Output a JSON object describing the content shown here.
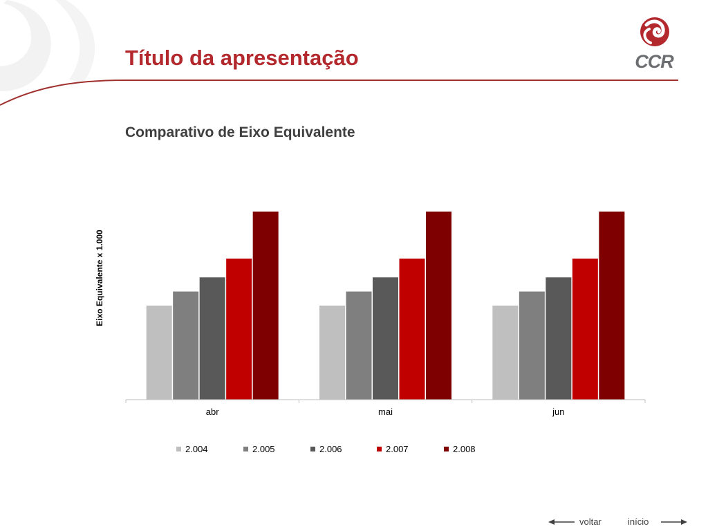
{
  "header": {
    "title": "Título da apresentação"
  },
  "logo": {
    "text": "CCR",
    "color": "#b3282d"
  },
  "chart_data": {
    "type": "bar",
    "title": "Comparativo de Eixo Equivalente",
    "ylabel": "Eixo Equivalente x 1.000",
    "xlabel": "",
    "categories": [
      "abr",
      "mai",
      "jun"
    ],
    "ylim": [
      0,
      1
    ],
    "y_ticks_visible": false,
    "grid": false,
    "legend_position": "bottom",
    "series": [
      {
        "name": "2.004",
        "color": "#bfbfbf",
        "values": [
          0.5,
          0.5,
          0.5
        ]
      },
      {
        "name": "2.005",
        "color": "#7f7f7f",
        "values": [
          0.575,
          0.575,
          0.575
        ]
      },
      {
        "name": "2.006",
        "color": "#595959",
        "values": [
          0.65,
          0.65,
          0.65
        ]
      },
      {
        "name": "2.007",
        "color": "#c00000",
        "values": [
          0.75,
          0.75,
          0.75
        ]
      },
      {
        "name": "2.008",
        "color": "#7f0000",
        "values": [
          1.0,
          1.0,
          1.0
        ]
      }
    ]
  },
  "nav": {
    "back_label": "voltar",
    "home_label": "início"
  }
}
